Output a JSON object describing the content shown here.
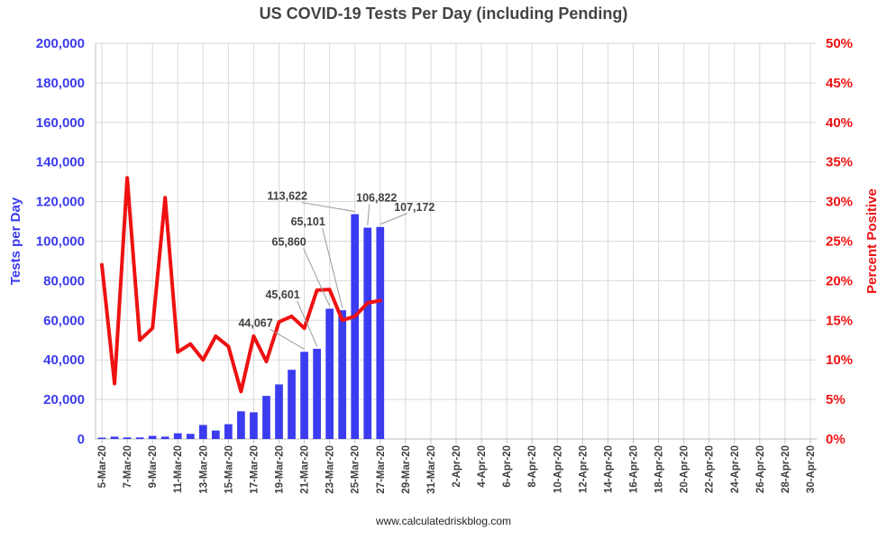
{
  "colors": {
    "bars": "#3b3bf0",
    "line": "#ee1111",
    "grid": "#d9d9d9",
    "text": "#404040",
    "leader": "#9a9a9a"
  },
  "chart_data": {
    "type": "bar",
    "title": "US COVID-19 Tests Per Day (including Pending)",
    "source": "www.calculatedriskblog.com",
    "grid": true,
    "x_range": [
      "5-Mar-20",
      "30-Apr-20"
    ],
    "x_tick_labels": [
      "5-Mar-20",
      "7-Mar-20",
      "9-Mar-20",
      "11-Mar-20",
      "13-Mar-20",
      "15-Mar-20",
      "17-Mar-20",
      "19-Mar-20",
      "21-Mar-20",
      "23-Mar-20",
      "25-Mar-20",
      "27-Mar-20",
      "29-Mar-20",
      "31-Mar-20",
      "2-Apr-20",
      "4-Apr-20",
      "6-Apr-20",
      "8-Apr-20",
      "10-Apr-20",
      "12-Apr-20",
      "14-Apr-20",
      "16-Apr-20",
      "18-Apr-20",
      "20-Apr-20",
      "22-Apr-20",
      "24-Apr-20",
      "26-Apr-20",
      "28-Apr-20",
      "30-Apr-20"
    ],
    "y_left": {
      "label": "Tests per Day",
      "ylim": [
        0,
        200000
      ],
      "ticks": [
        "0",
        "20,000",
        "40,000",
        "60,000",
        "80,000",
        "100,000",
        "120,000",
        "140,000",
        "160,000",
        "180,000",
        "200,000"
      ]
    },
    "y_right": {
      "label": "Percent Positive",
      "ylim": [
        0,
        50
      ],
      "ticks": [
        "0%",
        "5%",
        "10%",
        "15%",
        "20%",
        "25%",
        "30%",
        "35%",
        "40%",
        "45%",
        "50%"
      ]
    },
    "x": [
      "5-Mar-20",
      "6-Mar-20",
      "7-Mar-20",
      "8-Mar-20",
      "9-Mar-20",
      "10-Mar-20",
      "11-Mar-20",
      "12-Mar-20",
      "13-Mar-20",
      "14-Mar-20",
      "15-Mar-20",
      "16-Mar-20",
      "17-Mar-20",
      "18-Mar-20",
      "19-Mar-20",
      "20-Mar-20",
      "21-Mar-20",
      "22-Mar-20",
      "23-Mar-20",
      "24-Mar-20",
      "25-Mar-20",
      "26-Mar-20",
      "27-Mar-20"
    ],
    "series": [
      {
        "name": "Tests per Day",
        "type": "bar",
        "axis": "left",
        "values": [
          700,
          1200,
          800,
          800,
          1600,
          1200,
          2900,
          2600,
          7100,
          4300,
          7500,
          14000,
          13500,
          21800,
          27600,
          35000,
          44067,
          45601,
          65860,
          65101,
          113622,
          106822,
          107172
        ]
      },
      {
        "name": "Percent Positive",
        "type": "line",
        "axis": "right",
        "values": [
          22,
          7,
          33,
          12.5,
          14,
          30.5,
          11,
          12,
          10,
          13,
          11.7,
          6,
          13,
          9.8,
          14.8,
          15.5,
          14,
          18.8,
          18.9,
          15,
          15.5,
          17.2,
          17.5
        ]
      }
    ],
    "data_labels": [
      {
        "index": 16,
        "text": "44,067"
      },
      {
        "index": 17,
        "text": "45,601"
      },
      {
        "index": 18,
        "text": "65,860"
      },
      {
        "index": 19,
        "text": "65,101"
      },
      {
        "index": 20,
        "text": "113,622"
      },
      {
        "index": 21,
        "text": "106,822"
      },
      {
        "index": 22,
        "text": "107,172"
      }
    ]
  }
}
